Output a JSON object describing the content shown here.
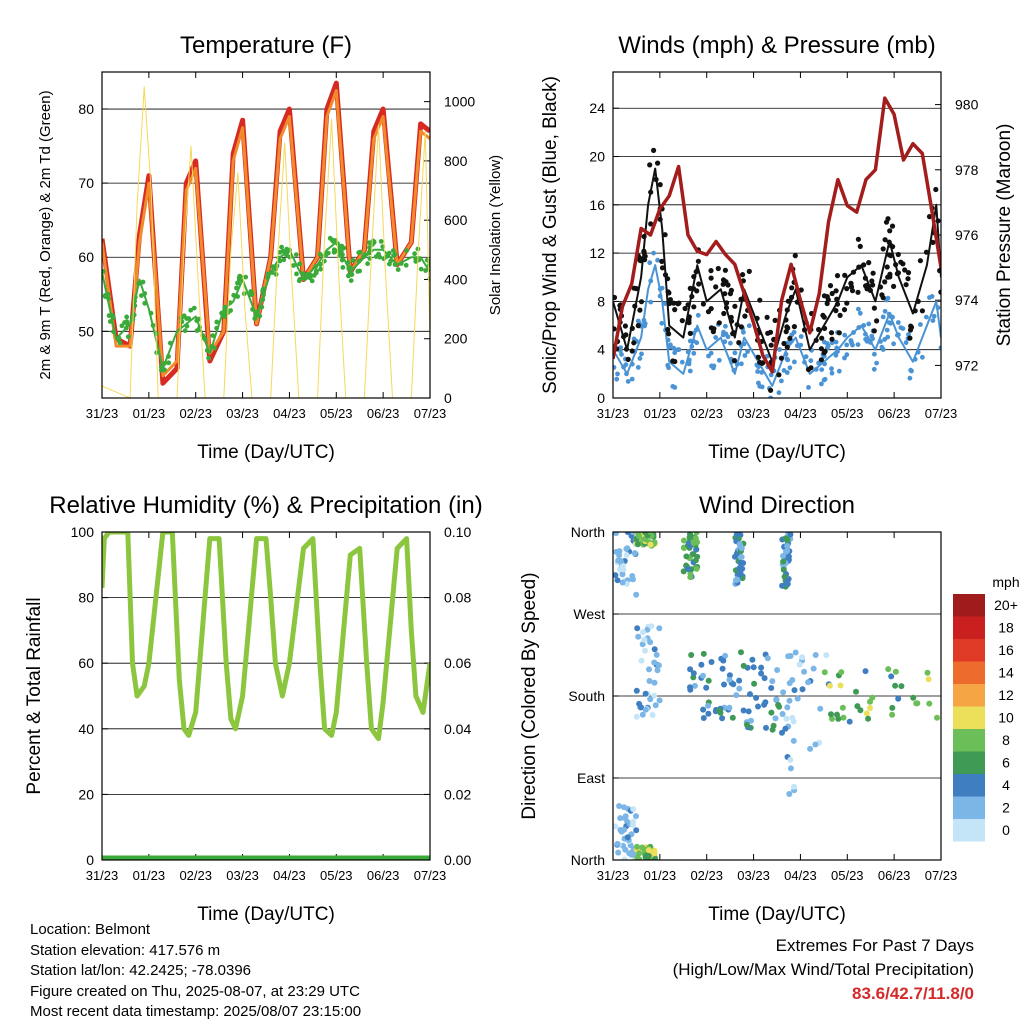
{
  "chart_data": [
    {
      "type": "line",
      "title": "Temperature (F)",
      "xlabel": "Time (Day/UTC)",
      "ylabel": "2m & 9m T (Red, Orange) & 2m Td (Green)",
      "y2label": "Solar Insolation (Yellow)",
      "x_ticks": [
        "31/23",
        "01/23",
        "02/23",
        "03/23",
        "04/23",
        "05/23",
        "06/23",
        "07/23"
      ],
      "ylim": [
        41,
        85
      ],
      "y_ticks": [
        50,
        60,
        70,
        80
      ],
      "y2lim": [
        0,
        1100
      ],
      "y2_ticks": [
        0,
        200,
        400,
        600,
        800,
        1000
      ],
      "grid": true,
      "series": [
        {
          "name": "2m T",
          "color": "#d62a22",
          "x": [
            0,
            0.3,
            0.6,
            0.8,
            1.0,
            1.3,
            1.6,
            1.8,
            2.0,
            2.3,
            2.6,
            2.8,
            3.0,
            3.3,
            3.6,
            3.8,
            4.0,
            4.3,
            4.6,
            4.8,
            5.0,
            5.3,
            5.6,
            5.8,
            6.0,
            6.3,
            6.6,
            6.8,
            7.0
          ],
          "y": [
            62.5,
            49,
            48,
            63,
            71,
            43,
            45,
            70,
            73,
            46,
            50,
            74,
            78.5,
            51,
            60,
            77,
            80,
            57,
            60,
            80,
            83.5,
            58,
            61,
            77,
            80,
            59,
            62,
            78,
            77
          ]
        },
        {
          "name": "9m T",
          "color": "#f28b2c",
          "x": [
            0,
            0.3,
            0.6,
            0.8,
            1.0,
            1.3,
            1.6,
            1.8,
            2.0,
            2.3,
            2.6,
            2.8,
            3.0,
            3.3,
            3.6,
            3.8,
            4.0,
            4.3,
            4.6,
            4.8,
            5.0,
            5.3,
            5.6,
            5.8,
            6.0,
            6.3,
            6.6,
            6.8,
            7.0
          ],
          "y": [
            62,
            48,
            48,
            62,
            70,
            44,
            46,
            69,
            72,
            47,
            50,
            73,
            77.5,
            51,
            60,
            76,
            79,
            57,
            60,
            79,
            82.5,
            58,
            61,
            76,
            79,
            59,
            62,
            77,
            76
          ]
        },
        {
          "name": "2m Td",
          "color": "#3aab3a",
          "x": [
            0,
            0.3,
            0.6,
            0.8,
            1.0,
            1.3,
            1.6,
            1.8,
            2.0,
            2.3,
            2.6,
            2.8,
            3.0,
            3.3,
            3.6,
            3.8,
            4.0,
            4.3,
            4.6,
            4.8,
            5.0,
            5.3,
            5.6,
            5.8,
            6.0,
            6.3,
            6.6,
            6.8,
            7.0
          ],
          "y": [
            58,
            49,
            51,
            57,
            53,
            45,
            50,
            51,
            52,
            47,
            53,
            54,
            57,
            52,
            58,
            60,
            61,
            57,
            59,
            61,
            62,
            58,
            60,
            61,
            61,
            59,
            60,
            60,
            58
          ]
        },
        {
          "name": "Solar Insolation",
          "color": "#f5d85a",
          "axis": "y2",
          "x": [
            0.0,
            0.6,
            0.75,
            0.9,
            1.05,
            1.2,
            1.6,
            1.75,
            1.9,
            2.05,
            2.2,
            2.6,
            2.75,
            2.9,
            3.05,
            3.2,
            3.6,
            3.75,
            3.9,
            4.05,
            4.2,
            4.6,
            4.75,
            4.9,
            5.05,
            5.2,
            5.6,
            5.75,
            5.9,
            6.05,
            6.2,
            6.6,
            6.75,
            6.9,
            7.0
          ],
          "y": [
            40,
            0,
            650,
            1050,
            700,
            0,
            0,
            500,
            850,
            400,
            0,
            0,
            500,
            760,
            300,
            0,
            0,
            480,
            860,
            400,
            0,
            0,
            540,
            940,
            420,
            0,
            0,
            480,
            920,
            420,
            0,
            0,
            500,
            900,
            200
          ]
        }
      ]
    },
    {
      "type": "line",
      "title": "Winds (mph) & Pressure (mb)",
      "xlabel": "Time (Day/UTC)",
      "ylabel": "Sonic/Prop Wind & Gust (Blue, Black)",
      "y2label": "Station Pressure (Maroon)",
      "x_ticks": [
        "31/23",
        "01/23",
        "02/23",
        "03/23",
        "04/23",
        "05/23",
        "06/23",
        "07/23"
      ],
      "ylim": [
        0,
        27
      ],
      "y_ticks": [
        0,
        4,
        8,
        12,
        16,
        20,
        24
      ],
      "y2lim": [
        971,
        981
      ],
      "y2_ticks": [
        972,
        974,
        976,
        978,
        980
      ],
      "grid": true,
      "series": [
        {
          "name": "Wind",
          "color": "#4a93d4",
          "x": [
            0,
            0.3,
            0.6,
            0.75,
            0.9,
            1.05,
            1.2,
            1.5,
            1.8,
            2.0,
            2.3,
            2.6,
            2.8,
            3.1,
            3.4,
            3.7,
            3.9,
            4.2,
            4.5,
            4.8,
            5.0,
            5.3,
            5.6,
            5.9,
            6.1,
            6.4,
            6.7,
            6.9,
            7.0
          ],
          "y": [
            4,
            2,
            5,
            9,
            11,
            8,
            3,
            2,
            6,
            4,
            5,
            2,
            5,
            3,
            1,
            4,
            5,
            2,
            3,
            4,
            5,
            6,
            4,
            7,
            5,
            3,
            6,
            8,
            5
          ]
        },
        {
          "name": "Gust",
          "color": "#111111",
          "x": [
            0,
            0.3,
            0.6,
            0.75,
            0.9,
            1.05,
            1.2,
            1.5,
            1.8,
            2.0,
            2.3,
            2.6,
            2.8,
            3.1,
            3.4,
            3.7,
            3.9,
            4.2,
            4.5,
            4.8,
            5.0,
            5.3,
            5.6,
            5.9,
            6.1,
            6.4,
            6.7,
            6.9,
            7.0
          ],
          "y": [
            8,
            4,
            10,
            16,
            19,
            14,
            6,
            5,
            11,
            8,
            9,
            5,
            9,
            6,
            3,
            7,
            9,
            4,
            6,
            8,
            10,
            11,
            8,
            13,
            10,
            7,
            11,
            16,
            10
          ]
        },
        {
          "name": "Station Pressure",
          "color": "#a31d1d",
          "axis": "y2",
          "x": [
            0,
            0.2,
            0.4,
            0.6,
            0.8,
            1.0,
            1.2,
            1.4,
            1.6,
            1.8,
            2.0,
            2.2,
            2.4,
            2.6,
            2.8,
            3.0,
            3.2,
            3.4,
            3.6,
            3.8,
            4.0,
            4.2,
            4.4,
            4.6,
            4.8,
            5.0,
            5.2,
            5.4,
            5.6,
            5.8,
            6.0,
            6.2,
            6.4,
            6.6,
            6.8,
            7.0
          ],
          "y": [
            972.2,
            973.8,
            974.5,
            976.2,
            976.0,
            976.8,
            977.2,
            978.1,
            976.0,
            975.5,
            975.4,
            975.8,
            975.4,
            975.1,
            974.2,
            973.3,
            972.3,
            971.8,
            974.0,
            975.1,
            974.0,
            973.0,
            974.2,
            976.4,
            977.7,
            976.9,
            976.7,
            977.7,
            978.0,
            980.2,
            979.7,
            978.3,
            978.8,
            978.5,
            976.8,
            975.0
          ]
        }
      ]
    },
    {
      "type": "line",
      "title": "Relative Humidity (%) & Precipitation (in)",
      "xlabel": "Time (Day/UTC)",
      "ylabel": "Percent & Total Rainfall",
      "x_ticks": [
        "31/23",
        "01/23",
        "02/23",
        "03/23",
        "04/23",
        "05/23",
        "06/23",
        "07/23"
      ],
      "ylim": [
        0,
        100
      ],
      "y_ticks": [
        0,
        20,
        40,
        60,
        80,
        100
      ],
      "y2lim": [
        0,
        0.1
      ],
      "y2_ticks": [
        "0.00",
        "0.02",
        "0.04",
        "0.06",
        "0.08",
        "0.10"
      ],
      "grid": true,
      "series": [
        {
          "name": "Relative Humidity",
          "color": "#8cc63f",
          "x": [
            0,
            0.05,
            0.15,
            0.3,
            0.55,
            0.65,
            0.75,
            0.9,
            1.0,
            1.3,
            1.5,
            1.65,
            1.75,
            1.85,
            2.0,
            2.3,
            2.5,
            2.65,
            2.75,
            2.85,
            3.0,
            3.3,
            3.5,
            3.6,
            3.7,
            3.85,
            4.0,
            4.3,
            4.5,
            4.65,
            4.75,
            4.9,
            5.0,
            5.3,
            5.5,
            5.65,
            5.75,
            5.9,
            6.0,
            6.3,
            6.5,
            6.6,
            6.7,
            6.85,
            7.0
          ],
          "y": [
            83,
            98,
            100,
            100,
            100,
            60,
            50,
            53,
            60,
            100,
            100,
            55,
            40,
            38,
            45,
            98,
            98,
            60,
            43,
            40,
            50,
            98,
            98,
            80,
            60,
            50,
            60,
            95,
            98,
            60,
            40,
            38,
            45,
            93,
            95,
            60,
            40,
            37,
            48,
            95,
            98,
            70,
            50,
            45,
            60
          ]
        },
        {
          "name": "Precipitation",
          "color": "#3aab3a",
          "x": [
            0,
            7
          ],
          "y": [
            0,
            0
          ]
        }
      ]
    },
    {
      "type": "scatter",
      "title": "Wind Direction",
      "xlabel": "Time (Day/UTC)",
      "ylabel": "Direction (Colored By Speed)",
      "x_ticks": [
        "31/23",
        "01/23",
        "02/23",
        "03/23",
        "04/23",
        "05/23",
        "06/23",
        "07/23"
      ],
      "y_ticks": [
        "North",
        "East",
        "South",
        "West",
        "North"
      ],
      "grid": true,
      "legend": {
        "title": "mph",
        "labels": [
          "20+",
          "18",
          "16",
          "14",
          "12",
          "10",
          "8",
          "6",
          "4",
          "2",
          "0"
        ],
        "colors": [
          "#a01c1c",
          "#c9201f",
          "#df3a26",
          "#ee6b2e",
          "#f6a545",
          "#ecdf5a",
          "#6cbf58",
          "#3f9a56",
          "#3f7fc1",
          "#7bb6e6",
          "#c4e5f7"
        ]
      },
      "clusters": [
        {
          "x": [
            0.05,
            0.5
          ],
          "deg": [
            290,
            360
          ],
          "speed": "0-4"
        },
        {
          "x": [
            0.05,
            0.5
          ],
          "deg": [
            0,
            60
          ],
          "speed": "0-4"
        },
        {
          "x": [
            0.5,
            0.9
          ],
          "deg": [
            345,
            360
          ],
          "speed": "6-10"
        },
        {
          "x": [
            0.5,
            0.9
          ],
          "deg": [
            0,
            15
          ],
          "speed": "6-10"
        },
        {
          "x": [
            0.5,
            1.0
          ],
          "deg": [
            150,
            260
          ],
          "speed": "0-4"
        },
        {
          "x": [
            1.5,
            1.8
          ],
          "deg": [
            310,
            360
          ],
          "speed": "4-8"
        },
        {
          "x": [
            1.6,
            2.6
          ],
          "deg": [
            150,
            230
          ],
          "speed": "2-6"
        },
        {
          "x": [
            2.6,
            2.8
          ],
          "deg": [
            300,
            360
          ],
          "speed": "2-6"
        },
        {
          "x": [
            2.6,
            3.6
          ],
          "deg": [
            140,
            230
          ],
          "speed": "2-6"
        },
        {
          "x": [
            3.6,
            3.8
          ],
          "deg": [
            300,
            360
          ],
          "speed": "2-6"
        },
        {
          "x": [
            3.6,
            4.6
          ],
          "deg": [
            60,
            230
          ],
          "speed": "0-4"
        },
        {
          "x": [
            4.5,
            7.0
          ],
          "deg": [
            150,
            210
          ],
          "speed": "4-10"
        }
      ]
    }
  ],
  "footer": {
    "location": "Location: Belmont",
    "elevation": "Station elevation: 417.576 m",
    "latlon": "Station lat/lon: 42.2425; -78.0396",
    "created": "Figure created on Thu, 2025-08-07, at 23:29 UTC",
    "timestamp": "Most recent data timestamp: 2025/08/07 23:15:00"
  },
  "extremes": {
    "title": "Extremes For Past 7 Days",
    "subtitle": "(High/Low/Max Wind/Total Precipitation)",
    "value": "83.6/42.7/11.8/0"
  }
}
